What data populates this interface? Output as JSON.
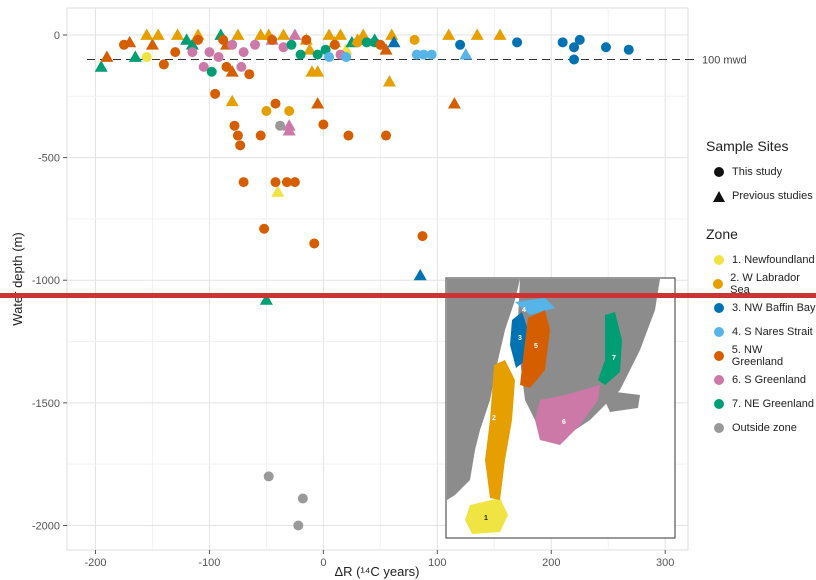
{
  "chart_data": {
    "type": "scatter",
    "xlabel": "ΔR (¹⁴C years)",
    "ylabel": "Water depth (m)",
    "xlim": [
      -225,
      320
    ],
    "ylim": [
      -2100,
      110
    ],
    "xticks": [
      -200,
      -100,
      0,
      100,
      200,
      300
    ],
    "yticks": [
      0,
      -500,
      -1000,
      -1500,
      -2000
    ],
    "xtick_labels": [
      "-200",
      "-100",
      "0",
      "100",
      "200",
      "300"
    ],
    "ytick_labels": [
      "0",
      "-500",
      "-1000",
      "-1500",
      "-2000"
    ],
    "grid": true,
    "reference_line": {
      "y": -100,
      "label": "100 mwd"
    },
    "zone_colors": {
      "1": "#F0E442",
      "2": "#E69F00",
      "3": "#0072B2",
      "4": "#56B4E9",
      "5": "#D55E00",
      "6": "#CC79A7",
      "7": "#009E73",
      "outside": "#999999"
    },
    "points": [
      {
        "x": 85,
        "y": -980,
        "zone": "3",
        "source": "previous"
      },
      {
        "x": -50,
        "y": -1080,
        "zone": "7",
        "source": "previous"
      },
      {
        "x": -195,
        "y": -130,
        "zone": "7",
        "source": "previous"
      },
      {
        "x": -190,
        "y": -90,
        "zone": "5",
        "source": "previous"
      },
      {
        "x": -170,
        "y": -30,
        "zone": "5",
        "source": "previous"
      },
      {
        "x": -165,
        "y": -90,
        "zone": "7",
        "source": "previous"
      },
      {
        "x": -155,
        "y": 0,
        "zone": "2",
        "source": "previous"
      },
      {
        "x": -150,
        "y": -40,
        "zone": "5",
        "source": "previous"
      },
      {
        "x": -145,
        "y": 0,
        "zone": "2",
        "source": "previous"
      },
      {
        "x": -128,
        "y": 0,
        "zone": "2",
        "source": "previous"
      },
      {
        "x": -120,
        "y": -20,
        "zone": "7",
        "source": "previous"
      },
      {
        "x": -115,
        "y": -40,
        "zone": "7",
        "source": "previous"
      },
      {
        "x": -110,
        "y": 0,
        "zone": "2",
        "source": "previous"
      },
      {
        "x": -90,
        "y": 0,
        "zone": "7",
        "source": "previous"
      },
      {
        "x": -85,
        "y": -40,
        "zone": "5",
        "source": "previous"
      },
      {
        "x": -80,
        "y": -270,
        "zone": "2",
        "source": "previous"
      },
      {
        "x": -80,
        "y": -150,
        "zone": "5",
        "source": "previous"
      },
      {
        "x": -75,
        "y": 0,
        "zone": "2",
        "source": "previous"
      },
      {
        "x": -55,
        "y": 0,
        "zone": "2",
        "source": "previous"
      },
      {
        "x": -48,
        "y": 0,
        "zone": "2",
        "source": "previous"
      },
      {
        "x": -45,
        "y": -20,
        "zone": "6",
        "source": "previous"
      },
      {
        "x": -40,
        "y": -640,
        "zone": "1",
        "source": "previous"
      },
      {
        "x": -35,
        "y": 0,
        "zone": "2",
        "source": "previous"
      },
      {
        "x": -30,
        "y": -370,
        "zone": "6",
        "source": "previous"
      },
      {
        "x": -30,
        "y": -390,
        "zone": "6",
        "source": "previous"
      },
      {
        "x": -25,
        "y": 0,
        "zone": "6",
        "source": "previous"
      },
      {
        "x": -15,
        "y": -20,
        "zone": "2",
        "source": "previous"
      },
      {
        "x": -12,
        "y": -60,
        "zone": "2",
        "source": "previous"
      },
      {
        "x": -10,
        "y": -150,
        "zone": "2",
        "source": "previous"
      },
      {
        "x": -5,
        "y": -150,
        "zone": "2",
        "source": "previous"
      },
      {
        "x": -5,
        "y": -280,
        "zone": "5",
        "source": "previous"
      },
      {
        "x": 5,
        "y": 0,
        "zone": "2",
        "source": "previous"
      },
      {
        "x": 10,
        "y": -30,
        "zone": "2",
        "source": "previous"
      },
      {
        "x": 15,
        "y": 0,
        "zone": "2",
        "source": "previous"
      },
      {
        "x": 20,
        "y": -60,
        "zone": "1",
        "source": "previous"
      },
      {
        "x": 25,
        "y": -30,
        "zone": "7",
        "source": "previous"
      },
      {
        "x": 30,
        "y": -20,
        "zone": "2",
        "source": "previous"
      },
      {
        "x": 35,
        "y": 0,
        "zone": "2",
        "source": "previous"
      },
      {
        "x": 45,
        "y": -20,
        "zone": "7",
        "source": "previous"
      },
      {
        "x": 55,
        "y": -60,
        "zone": "5",
        "source": "previous"
      },
      {
        "x": 58,
        "y": -190,
        "zone": "2",
        "source": "previous"
      },
      {
        "x": 60,
        "y": 0,
        "zone": "2",
        "source": "previous"
      },
      {
        "x": 62,
        "y": -30,
        "zone": "3",
        "source": "previous"
      },
      {
        "x": 110,
        "y": 0,
        "zone": "2",
        "source": "previous"
      },
      {
        "x": 115,
        "y": -280,
        "zone": "5",
        "source": "previous"
      },
      {
        "x": 125,
        "y": -80,
        "zone": "4",
        "source": "previous"
      },
      {
        "x": 135,
        "y": 0,
        "zone": "2",
        "source": "previous"
      },
      {
        "x": 155,
        "y": 0,
        "zone": "2",
        "source": "previous"
      },
      {
        "x": -155,
        "y": -90,
        "zone": "1",
        "source": "this"
      },
      {
        "x": -175,
        "y": -40,
        "zone": "5",
        "source": "this"
      },
      {
        "x": -140,
        "y": -120,
        "zone": "5",
        "source": "this"
      },
      {
        "x": -130,
        "y": -70,
        "zone": "5",
        "source": "this"
      },
      {
        "x": -115,
        "y": -70,
        "zone": "6",
        "source": "this"
      },
      {
        "x": -110,
        "y": -20,
        "zone": "5",
        "source": "this"
      },
      {
        "x": -105,
        "y": -130,
        "zone": "6",
        "source": "this"
      },
      {
        "x": -100,
        "y": -70,
        "zone": "6",
        "source": "this"
      },
      {
        "x": -98,
        "y": -150,
        "zone": "7",
        "source": "this"
      },
      {
        "x": -95,
        "y": -240,
        "zone": "5",
        "source": "this"
      },
      {
        "x": -92,
        "y": -90,
        "zone": "6",
        "source": "this"
      },
      {
        "x": -88,
        "y": -20,
        "zone": "5",
        "source": "this"
      },
      {
        "x": -85,
        "y": -130,
        "zone": "5",
        "source": "this"
      },
      {
        "x": -80,
        "y": -40,
        "zone": "6",
        "source": "this"
      },
      {
        "x": -78,
        "y": -370,
        "zone": "5",
        "source": "this"
      },
      {
        "x": -75,
        "y": -410,
        "zone": "5",
        "source": "this"
      },
      {
        "x": -73,
        "y": -450,
        "zone": "5",
        "source": "this"
      },
      {
        "x": -72,
        "y": -130,
        "zone": "6",
        "source": "this"
      },
      {
        "x": -70,
        "y": -600,
        "zone": "5",
        "source": "this"
      },
      {
        "x": -70,
        "y": -70,
        "zone": "6",
        "source": "this"
      },
      {
        "x": -65,
        "y": -160,
        "zone": "5",
        "source": "this"
      },
      {
        "x": -60,
        "y": -40,
        "zone": "6",
        "source": "this"
      },
      {
        "x": -55,
        "y": -410,
        "zone": "5",
        "source": "this"
      },
      {
        "x": -52,
        "y": -790,
        "zone": "5",
        "source": "this"
      },
      {
        "x": -50,
        "y": -310,
        "zone": "2",
        "source": "this"
      },
      {
        "x": -48,
        "y": -1800,
        "zone": "outside",
        "source": "this"
      },
      {
        "x": -45,
        "y": -20,
        "zone": "5",
        "source": "this"
      },
      {
        "x": -42,
        "y": -600,
        "zone": "5",
        "source": "this"
      },
      {
        "x": -42,
        "y": -280,
        "zone": "5",
        "source": "this"
      },
      {
        "x": -38,
        "y": -370,
        "zone": "outside",
        "source": "this"
      },
      {
        "x": -35,
        "y": -50,
        "zone": "6",
        "source": "this"
      },
      {
        "x": -32,
        "y": -600,
        "zone": "5",
        "source": "this"
      },
      {
        "x": -30,
        "y": -310,
        "zone": "2",
        "source": "this"
      },
      {
        "x": -28,
        "y": -40,
        "zone": "7",
        "source": "this"
      },
      {
        "x": -25,
        "y": -600,
        "zone": "5",
        "source": "this"
      },
      {
        "x": -22,
        "y": -2000,
        "zone": "outside",
        "source": "this"
      },
      {
        "x": -20,
        "y": -80,
        "zone": "7",
        "source": "this"
      },
      {
        "x": -18,
        "y": -1890,
        "zone": "outside",
        "source": "this"
      },
      {
        "x": -15,
        "y": -20,
        "zone": "5",
        "source": "this"
      },
      {
        "x": -8,
        "y": -850,
        "zone": "5",
        "source": "this"
      },
      {
        "x": -5,
        "y": -80,
        "zone": "7",
        "source": "this"
      },
      {
        "x": 0,
        "y": -365,
        "zone": "5",
        "source": "this"
      },
      {
        "x": 2,
        "y": -60,
        "zone": "7",
        "source": "this"
      },
      {
        "x": 5,
        "y": -90,
        "zone": "4",
        "source": "this"
      },
      {
        "x": 10,
        "y": -40,
        "zone": "5",
        "source": "this"
      },
      {
        "x": 15,
        "y": -80,
        "zone": "6",
        "source": "this"
      },
      {
        "x": 20,
        "y": -90,
        "zone": "4",
        "source": "this"
      },
      {
        "x": 22,
        "y": -410,
        "zone": "5",
        "source": "this"
      },
      {
        "x": 30,
        "y": -30,
        "zone": "2",
        "source": "this"
      },
      {
        "x": 38,
        "y": -30,
        "zone": "7",
        "source": "this"
      },
      {
        "x": 45,
        "y": -30,
        "zone": "7",
        "source": "this"
      },
      {
        "x": 50,
        "y": -40,
        "zone": "5",
        "source": "this"
      },
      {
        "x": 55,
        "y": -410,
        "zone": "5",
        "source": "this"
      },
      {
        "x": 80,
        "y": -20,
        "zone": "2",
        "source": "this"
      },
      {
        "x": 82,
        "y": -80,
        "zone": "4",
        "source": "this"
      },
      {
        "x": 87,
        "y": -820,
        "zone": "5",
        "source": "this"
      },
      {
        "x": 88,
        "y": -80,
        "zone": "4",
        "source": "this"
      },
      {
        "x": 95,
        "y": -80,
        "zone": "4",
        "source": "this"
      },
      {
        "x": 120,
        "y": -40,
        "zone": "3",
        "source": "this"
      },
      {
        "x": 170,
        "y": -30,
        "zone": "3",
        "source": "this"
      },
      {
        "x": 210,
        "y": -30,
        "zone": "3",
        "source": "this"
      },
      {
        "x": 220,
        "y": -50,
        "zone": "3",
        "source": "this"
      },
      {
        "x": 220,
        "y": -100,
        "zone": "3",
        "source": "this"
      },
      {
        "x": 225,
        "y": -20,
        "zone": "3",
        "source": "this"
      },
      {
        "x": 248,
        "y": -50,
        "zone": "3",
        "source": "this"
      },
      {
        "x": 268,
        "y": -60,
        "zone": "3",
        "source": "this"
      }
    ]
  },
  "legend": {
    "sites_title": "Sample Sites",
    "sites": [
      {
        "label": "This study",
        "shape": "circle"
      },
      {
        "label": "Previous studies",
        "shape": "triangle"
      }
    ],
    "zone_title": "Zone",
    "zones": [
      {
        "label": "1. Newfoundland",
        "color": "#F0E442"
      },
      {
        "label": "2. W Labrador Sea",
        "color": "#E69F00"
      },
      {
        "label": "3. NW Baffin Bay",
        "color": "#0072B2"
      },
      {
        "label": "4. S Nares Strait",
        "color": "#56B4E9"
      },
      {
        "label": "5. NW Greenland",
        "color": "#D55E00"
      },
      {
        "label": "6. S Greenland",
        "color": "#CC79A7"
      },
      {
        "label": "7. NE Greenland",
        "color": "#009E73"
      },
      {
        "label": "Outside zone",
        "color": "#999999"
      }
    ]
  },
  "inset_map": {
    "region_labels": [
      "1",
      "2",
      "3",
      "4",
      "5",
      "6",
      "7"
    ],
    "land_color": "#8c8c8c"
  },
  "overlay": {
    "color": "#cc3333"
  }
}
